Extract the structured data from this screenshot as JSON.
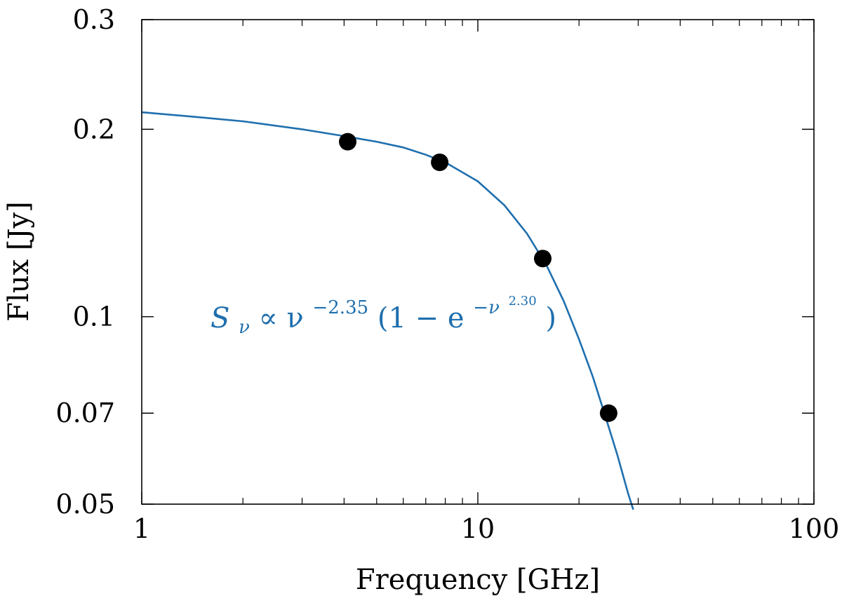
{
  "chart_data": {
    "type": "scatter",
    "xlabel": "Frequency [GHz]",
    "ylabel": "Flux [Jy]",
    "x_scale": "log",
    "y_scale": "log",
    "xlim": [
      1,
      100
    ],
    "ylim": [
      0.05,
      0.3
    ],
    "x_ticks": [
      {
        "value": 1,
        "label": "1"
      },
      {
        "value": 10,
        "label": "10"
      },
      {
        "value": 100,
        "label": "100"
      }
    ],
    "y_ticks": [
      {
        "value": 0.05,
        "label": "0.05"
      },
      {
        "value": 0.07,
        "label": "0.07"
      },
      {
        "value": 0.1,
        "label": "0.1"
      },
      {
        "value": 0.2,
        "label": "0.2"
      },
      {
        "value": 0.3,
        "label": "0.3"
      }
    ],
    "grid": false,
    "points": [
      {
        "x": 4.1,
        "y": 0.191
      },
      {
        "x": 7.7,
        "y": 0.177
      },
      {
        "x": 15.6,
        "y": 0.124
      },
      {
        "x": 24.5,
        "y": 0.07
      }
    ],
    "fit_curve": {
      "x": [
        1,
        1.5,
        2,
        3,
        4,
        5,
        6,
        7,
        8,
        10,
        12,
        14,
        16,
        18,
        20,
        22,
        24,
        26,
        28,
        29
      ],
      "y": [
        0.213,
        0.209,
        0.206,
        0.2,
        0.195,
        0.191,
        0.187,
        0.182,
        0.177,
        0.165,
        0.151,
        0.136,
        0.121,
        0.106,
        0.092,
        0.08,
        0.069,
        0.06,
        0.052,
        0.049
      ],
      "color": "#1f6fae"
    },
    "annotation": {
      "text": "S_ν ∝ ν^{-2.35}(1 − e^{−ν^{2.30}})",
      "main": "S",
      "sub": "ν",
      "mid": " ∝ ν",
      "sup1": "−2.35",
      "paren_open": "(1 − e",
      "sup2": "−ν",
      "sup3": "2.30",
      "paren_close": ")",
      "color": "#1f6fae"
    },
    "point_color": "#000000"
  }
}
